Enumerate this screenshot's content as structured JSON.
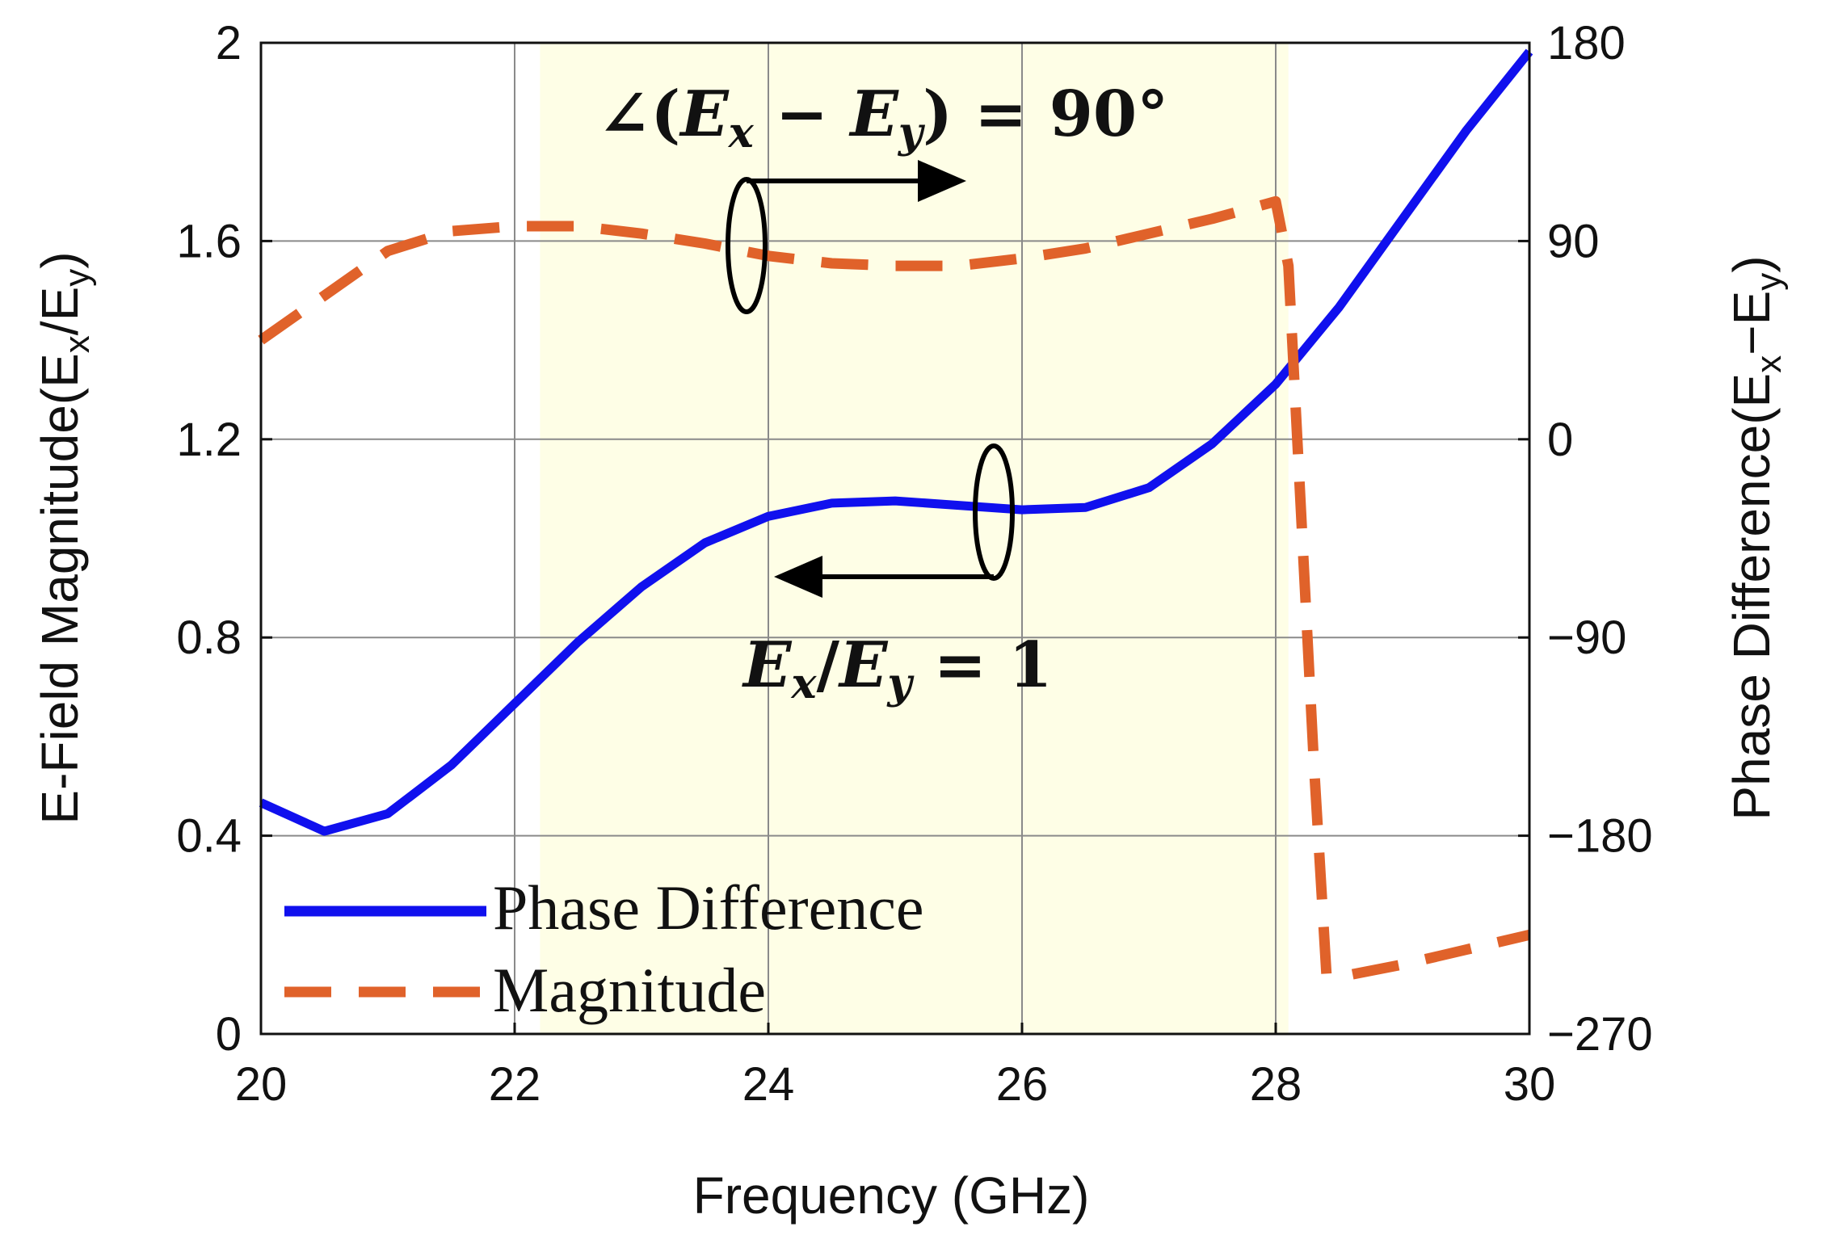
{
  "chart_data": {
    "type": "line",
    "xlabel": "Frequency (GHz)",
    "ylabel": "E-Field Magnitude(E<sub>x</sub>/E<sub>y</sub>)",
    "ylabel_parts": {
      "main": "E-Field Magnitude(E",
      "sub1": "x",
      "mid": "/E",
      "sub2": "y",
      "end": ")"
    },
    "y2label_parts": {
      "main": "Phase Difference(E",
      "sub1": "x",
      "mid": "−E",
      "sub2": "y",
      "end": ")"
    },
    "xlim": [
      20,
      30
    ],
    "ylim": [
      0,
      2
    ],
    "y2lim": [
      -270,
      180
    ],
    "xticks": [
      "20",
      "22",
      "24",
      "26",
      "28",
      "30"
    ],
    "xtick_values": [
      20,
      22,
      24,
      26,
      28,
      30
    ],
    "yticks": [
      "0",
      "0.4",
      "0.8",
      "1.2",
      "1.6",
      "2"
    ],
    "ytick_values": [
      0,
      0.4,
      0.8,
      1.2,
      1.6,
      2
    ],
    "y2ticks": [
      "−270",
      "−180",
      "−90",
      "0",
      "90",
      "180"
    ],
    "y2tick_values": [
      -270,
      -180,
      -90,
      0,
      90,
      180
    ],
    "grid": true,
    "highlight_band": {
      "from": 22.2,
      "to": 28.1,
      "color": "#fefee6"
    },
    "legend_position": "bottom-left",
    "series": [
      {
        "name": "Phase Difference",
        "axis": "right",
        "color": "#1010ee",
        "style": "solid",
        "x": [
          20,
          20.5,
          21,
          21.5,
          22,
          22.5,
          23,
          23.5,
          24,
          24.5,
          25,
          25.5,
          26,
          26.5,
          27,
          27.5,
          28,
          28.5,
          29,
          29.5,
          30
        ],
        "values": [
          -165,
          -178,
          -170,
          -148,
          -120,
          -92,
          -67,
          -47,
          -35,
          -29,
          -28,
          -30,
          -32,
          -31,
          -22,
          -2,
          25,
          60,
          100,
          140,
          176
        ]
      },
      {
        "name": "Magnitude",
        "axis": "left",
        "color": "#e0622a",
        "style": "dashed",
        "x": [
          20,
          20.5,
          21,
          21.5,
          22,
          22.5,
          23,
          23.5,
          24,
          24.5,
          25,
          25.5,
          26,
          26.5,
          27,
          27.5,
          28,
          28.1,
          28.2,
          28.3,
          28.4,
          28.5,
          29,
          29.5,
          30
        ],
        "values": [
          1.4,
          1.49,
          1.58,
          1.62,
          1.63,
          1.63,
          1.615,
          1.595,
          1.57,
          1.555,
          1.55,
          1.55,
          1.565,
          1.585,
          1.615,
          1.645,
          1.68,
          1.55,
          1.05,
          0.55,
          0.12,
          0.115,
          0.14,
          0.17,
          0.2
        ]
      }
    ],
    "annotations": [
      {
        "id": "phase",
        "text_prefix": "∠(",
        "text_core": "E",
        "text_op": " − ",
        "text_core2": "E",
        "text_suffix": ") = 90°",
        "sub1": "x",
        "sub2": "y",
        "arrow": "right",
        "points_to": "right axis"
      },
      {
        "id": "ratio",
        "text_core": "E",
        "text_mid": "/",
        "text_core2": "E",
        "text_suffix": " = 1",
        "sub1": "x",
        "sub2": "y",
        "arrow": "left",
        "points_to": "left axis"
      }
    ]
  }
}
